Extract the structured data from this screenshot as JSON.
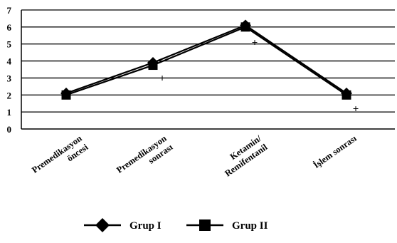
{
  "chart_data": {
    "type": "line",
    "categories": [
      "Premedikasyon öncesi",
      "Premedikasyon sonrası",
      "Ketamin/ Remifentanil",
      "İşlem sonrası"
    ],
    "category_label_lines": [
      [
        "Premedikasyon",
        "öncesi"
      ],
      [
        "Premedikasyon",
        "sonrası"
      ],
      [
        "Ketamin/",
        "Remifentanil"
      ],
      [
        "İşlem sonrası"
      ]
    ],
    "y_ticks": [
      "0",
      "1",
      "2",
      "3",
      "4",
      "5",
      "6",
      "7"
    ],
    "ylim": [
      0,
      7
    ],
    "grid": true,
    "legend_position": "bottom",
    "series": [
      {
        "name": "Grup I",
        "values": [
          2.1,
          3.9,
          6.1,
          2.1
        ],
        "marker": "diamond",
        "color": "#000000"
      },
      {
        "name": "Grup II",
        "values": [
          2.0,
          3.75,
          6.0,
          2.0
        ],
        "marker": "square",
        "color": "#000000"
      }
    ],
    "annotations": [
      {
        "text": "+",
        "category_index": 1,
        "y": 3.0
      },
      {
        "text": "+",
        "category_index": 2,
        "y": 5.1
      },
      {
        "text": "+",
        "category_index": 3,
        "y": 1.2
      }
    ],
    "title": "",
    "xlabel": "",
    "ylabel": ""
  }
}
